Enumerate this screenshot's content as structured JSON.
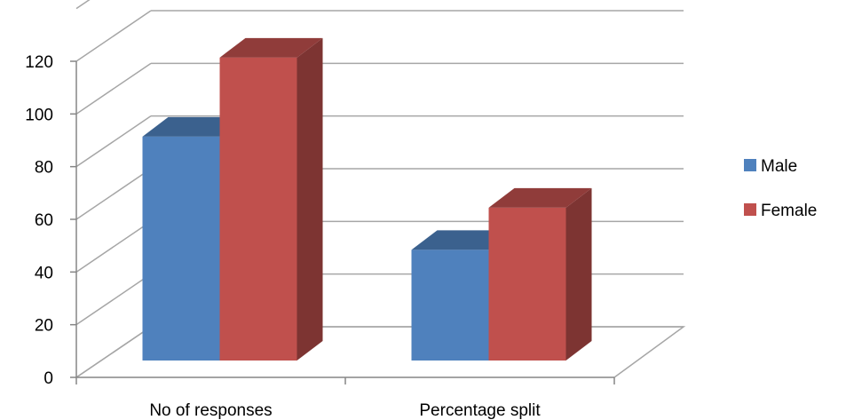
{
  "chart_data": {
    "type": "bar",
    "categories": [
      "No of responses",
      "Percentage split"
    ],
    "series": [
      {
        "name": "Male",
        "values": [
          85,
          42
        ],
        "color": "#4F81BD"
      },
      {
        "name": "Female",
        "values": [
          115,
          58
        ],
        "color": "#C0504D"
      }
    ],
    "ylim": [
      0,
      120
    ],
    "yticks": [
      "0",
      "20",
      "40",
      "60",
      "80",
      "100",
      "120"
    ],
    "title": "",
    "xlabel": "",
    "ylabel": "",
    "grid": true,
    "legend_position": "right",
    "style": "3d-clustered-column"
  }
}
